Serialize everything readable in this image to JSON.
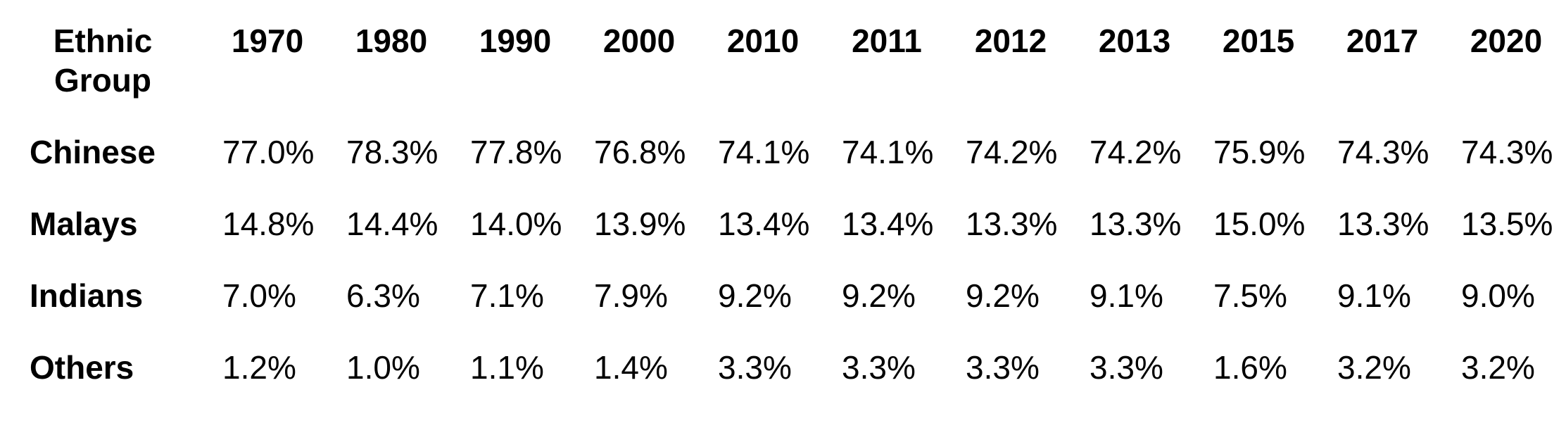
{
  "page": {
    "background_color": "#ffffff",
    "text_color": "#000000"
  },
  "table": {
    "header": {
      "col0_label": "Ethnic Group",
      "years": [
        "1970",
        "1980",
        "1990",
        "2000",
        "2010",
        "2011",
        "2012",
        "2013",
        "2015",
        "2017",
        "2020"
      ]
    },
    "rows": [
      {
        "label": "Chinese",
        "values": [
          "77.0%",
          "78.3%",
          "77.8%",
          "76.8%",
          "74.1%",
          "74.1%",
          "74.2%",
          "74.2%",
          "75.9%",
          "74.3%",
          "74.3%"
        ]
      },
      {
        "label": "Malays",
        "values": [
          "14.8%",
          "14.4%",
          "14.0%",
          "13.9%",
          "13.4%",
          "13.4%",
          "13.3%",
          "13.3%",
          "15.0%",
          "13.3%",
          "13.5%"
        ]
      },
      {
        "label": "Indians",
        "values": [
          "7.0%",
          "6.3%",
          "7.1%",
          "7.9%",
          "9.2%",
          "9.2%",
          "9.2%",
          "9.1%",
          "7.5%",
          "9.1%",
          "9.0%"
        ]
      },
      {
        "label": "Others",
        "values": [
          "1.2%",
          "1.0%",
          "1.1%",
          "1.4%",
          "3.3%",
          "3.3%",
          "3.3%",
          "3.3%",
          "1.6%",
          "3.2%",
          "3.2%"
        ]
      }
    ]
  },
  "chart_data": {
    "type": "table",
    "title": "",
    "xlabel": "Ethnic Group",
    "ylabel": "",
    "unit": "%",
    "categories": [
      "1970",
      "1980",
      "1990",
      "2000",
      "2010",
      "2011",
      "2012",
      "2013",
      "2015",
      "2017",
      "2020"
    ],
    "series": [
      {
        "name": "Chinese",
        "values": [
          77.0,
          78.3,
          77.8,
          76.8,
          74.1,
          74.1,
          74.2,
          74.2,
          75.9,
          74.3,
          74.3
        ]
      },
      {
        "name": "Malays",
        "values": [
          14.8,
          14.4,
          14.0,
          13.9,
          13.4,
          13.4,
          13.3,
          13.3,
          15.0,
          13.3,
          13.5
        ]
      },
      {
        "name": "Indians",
        "values": [
          7.0,
          6.3,
          7.1,
          7.9,
          9.2,
          9.2,
          9.2,
          9.1,
          7.5,
          9.1,
          9.0
        ]
      },
      {
        "name": "Others",
        "values": [
          1.2,
          1.0,
          1.1,
          1.4,
          3.3,
          3.3,
          3.3,
          3.3,
          1.6,
          3.2,
          3.2
        ]
      }
    ]
  }
}
